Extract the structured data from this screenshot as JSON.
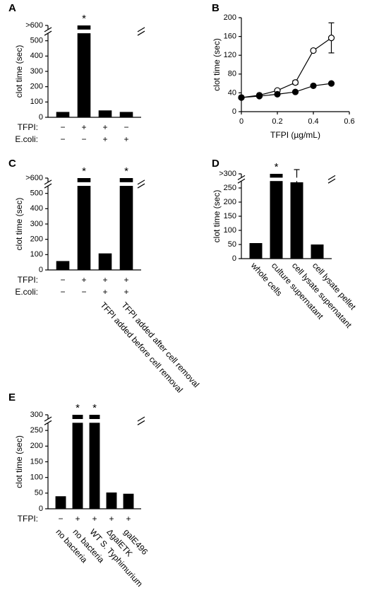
{
  "chart_data": [
    {
      "type": "bar",
      "panel": "A",
      "ylabel": "clot time (sec)",
      "color": "#000000",
      "categories": [
        null,
        null,
        null,
        null
      ],
      "values": [
        35,
        600,
        45,
        35
      ],
      "errors": [
        null,
        null,
        null,
        null
      ],
      "significance": [
        null,
        "*",
        null,
        null
      ],
      "ylim": [
        0,
        600
      ],
      "yticks": [
        0,
        100,
        200,
        300,
        400,
        500,
        {
          "value": 600,
          "label": ">600"
        }
      ],
      "axis_break": true,
      "rows": [
        {
          "label": "TFPI:",
          "values": [
            "−",
            "+",
            "+",
            "−"
          ]
        },
        {
          "label": "E.coli:",
          "values": [
            "−",
            "−",
            "+",
            "+"
          ]
        }
      ]
    },
    {
      "type": "line",
      "panel": "B",
      "ylabel": "clot time (sec)",
      "xlabel": "TFPI (µg/mL)",
      "x": [
        0,
        0.1,
        0.2,
        0.3,
        0.4,
        0.5
      ],
      "series": [
        {
          "marker": "open",
          "color": "#000000",
          "values": [
            30,
            35,
            45,
            62,
            130,
            157
          ],
          "errors": [
            null,
            null,
            null,
            4,
            null,
            32
          ]
        },
        {
          "marker": "filled",
          "color": "#000000",
          "values": [
            30,
            33,
            37,
            42,
            55,
            60
          ],
          "errors": [
            null,
            null,
            null,
            null,
            null,
            null
          ]
        }
      ],
      "xlim": [
        0,
        0.6
      ],
      "xticks": [
        0,
        0.2,
        0.4,
        0.6
      ],
      "ylim": [
        0,
        200
      ],
      "yticks": [
        0,
        40,
        80,
        120,
        160,
        200
      ]
    },
    {
      "type": "bar",
      "panel": "C",
      "ylabel": "clot time (sec)",
      "color": "#000000",
      "categories": [
        null,
        null,
        "TFPI added before cell removal",
        "TFPI added after cell removal"
      ],
      "values": [
        58,
        600,
        108,
        600
      ],
      "errors": [
        null,
        null,
        null,
        null
      ],
      "significance": [
        null,
        "*",
        null,
        "*"
      ],
      "ylim": [
        0,
        600
      ],
      "yticks": [
        0,
        100,
        200,
        300,
        400,
        500,
        {
          "value": 600,
          "label": ">600"
        }
      ],
      "axis_break": true,
      "rows": [
        {
          "label": "TFPI:",
          "values": [
            "−",
            "+",
            "+",
            "+"
          ]
        },
        {
          "label": "E.coli:",
          "values": [
            "−",
            "−",
            "+",
            "+"
          ]
        }
      ]
    },
    {
      "type": "bar",
      "panel": "D",
      "ylabel": "clot time (sec)",
      "color": "#000000",
      "categories": [
        "whole cells",
        "culture supernatant",
        "cell lysate supernatant",
        "cell lysate pellet"
      ],
      "values": [
        55,
        300,
        270,
        50
      ],
      "errors": [
        null,
        null,
        45,
        null
      ],
      "significance": [
        null,
        "*",
        null,
        null
      ],
      "ylim": [
        0,
        300
      ],
      "yticks": [
        0,
        50,
        100,
        150,
        200,
        250,
        {
          "value": 300,
          "label": ">300"
        }
      ],
      "axis_break": true,
      "rows": []
    },
    {
      "type": "bar",
      "panel": "E",
      "ylabel": "clot time (sec)",
      "color": "#000000",
      "categories": [
        "no bacteria",
        "no bacteria",
        "WT S. Typhimurium",
        "ΔgalETK",
        "galE496"
      ],
      "values": [
        40,
        300,
        300,
        52,
        48
      ],
      "errors": [
        null,
        null,
        null,
        null,
        null
      ],
      "significance": [
        null,
        "*",
        "*",
        null,
        null
      ],
      "ylim": [
        0,
        300
      ],
      "yticks": [
        0,
        50,
        100,
        150,
        200,
        250,
        300
      ],
      "axis_break": true,
      "rows": [
        {
          "label": "TFPI:",
          "values": [
            "−",
            "+",
            "+",
            "+",
            "+"
          ]
        }
      ]
    }
  ]
}
